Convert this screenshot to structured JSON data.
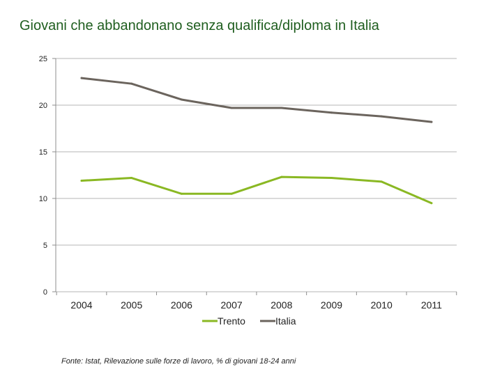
{
  "title": "Giovani che abbandonano senza qualifica/diploma in Italia",
  "source": "Fonte: Istat, Rilevazione sulle forze di lavoro, % di giovani 18-24 anni",
  "chart_data": {
    "type": "line",
    "title": "Giovani che abbandonano senza qualifica/diploma in Italia",
    "xlabel": "",
    "ylabel": "",
    "categories": [
      "2004",
      "2005",
      "2006",
      "2007",
      "2008",
      "2009",
      "2010",
      "2011"
    ],
    "ylim": [
      0,
      25
    ],
    "yticks": [
      0,
      5,
      10,
      15,
      20,
      25
    ],
    "grid": true,
    "legend": "bottom",
    "series": [
      {
        "name": "Trento",
        "color": "#8ab823",
        "values": [
          11.9,
          12.2,
          10.5,
          10.5,
          12.3,
          12.2,
          11.8,
          9.5
        ]
      },
      {
        "name": "Italia",
        "color": "#6b645d",
        "values": [
          22.9,
          22.3,
          20.6,
          19.7,
          19.7,
          19.2,
          18.8,
          18.2
        ]
      }
    ]
  }
}
